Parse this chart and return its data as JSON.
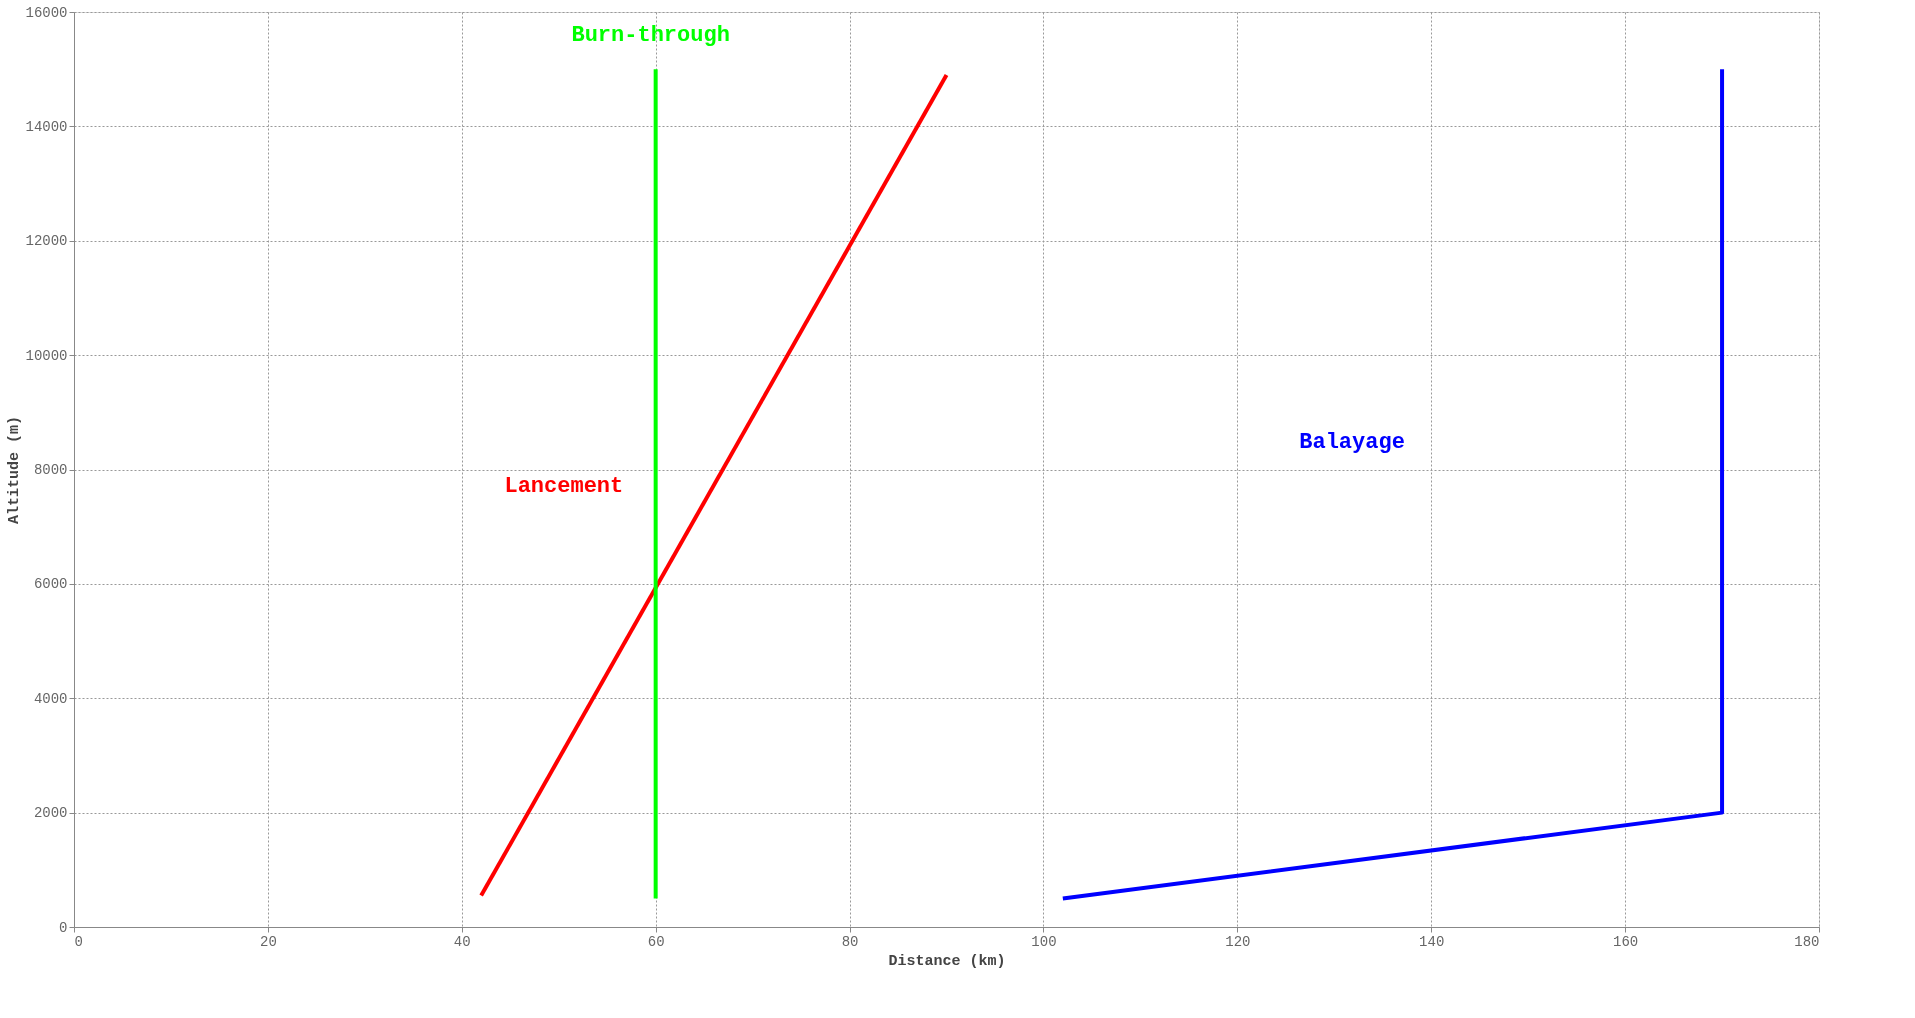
{
  "chart_data": {
    "type": "line",
    "xlabel": "Distance (km)",
    "ylabel": "Altitude (m)",
    "xlim": [
      0,
      180
    ],
    "xticks": [
      0,
      20,
      40,
      60,
      80,
      100,
      120,
      140,
      160,
      180
    ],
    "ylim": [
      0,
      16000
    ],
    "yticks": [
      0,
      2000,
      4000,
      6000,
      8000,
      10000,
      12000,
      14000,
      16000
    ],
    "grid": true,
    "legend": false,
    "line_style": "solid",
    "marker": "none",
    "series": [
      {
        "name": "Lancement",
        "color": "#ff0000",
        "x": [
          42,
          90
        ],
        "values": [
          550,
          14900
        ]
      },
      {
        "name": "Burn-through",
        "color": "#00ff00",
        "x": [
          60,
          60
        ],
        "values": [
          500,
          15000
        ]
      },
      {
        "name": "Balayage",
        "color": "#0000ff",
        "x": [
          102,
          170,
          170
        ],
        "values": [
          500,
          2000,
          15000
        ]
      }
    ]
  }
}
